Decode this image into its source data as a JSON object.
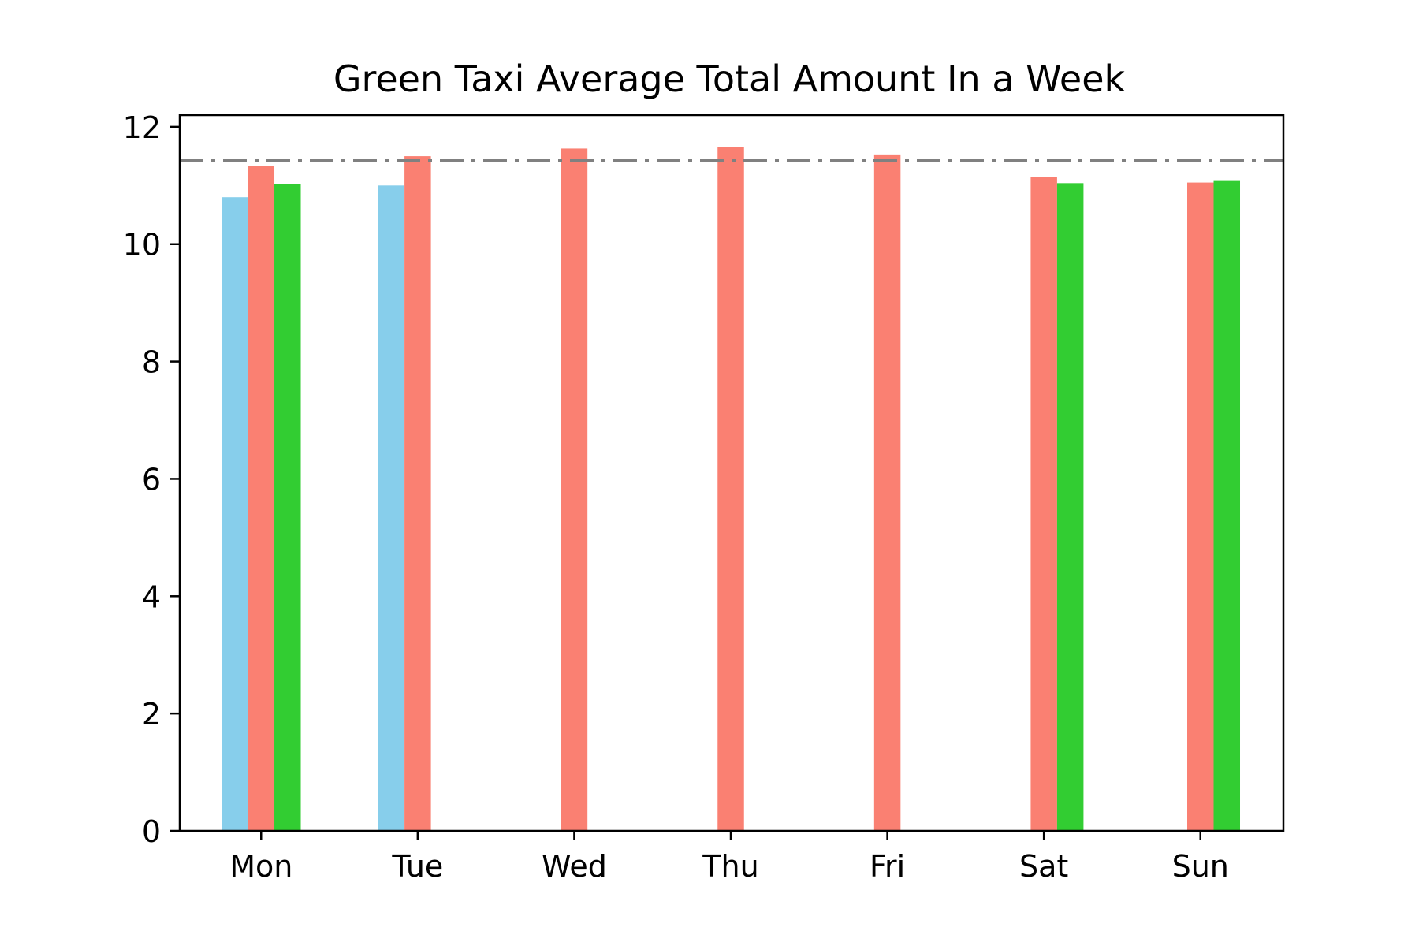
{
  "chart_data": {
    "type": "bar",
    "title": "Green Taxi Average Total Amount In a Week",
    "xlabel": "",
    "ylabel": "",
    "categories": [
      "Mon",
      "Tue",
      "Wed",
      "Thu",
      "Fri",
      "Sat",
      "Sun"
    ],
    "ylim": [
      0,
      12.2
    ],
    "yticks": [
      "0",
      "2",
      "4",
      "6",
      "8",
      "10",
      "12"
    ],
    "grid": false,
    "legend": "none",
    "series": [
      {
        "color": "#87CEEB",
        "values": [
          10.8,
          11.0,
          null,
          null,
          null,
          null,
          null
        ]
      },
      {
        "color": "#FA8072",
        "values": [
          11.33,
          11.5,
          11.63,
          11.65,
          11.53,
          11.15,
          11.05
        ]
      },
      {
        "color": "#32CD32",
        "values": [
          11.02,
          null,
          null,
          null,
          null,
          11.04,
          11.09
        ]
      }
    ],
    "reference_line": {
      "value": 11.42,
      "color": "#808080",
      "style": "dash-dot"
    }
  }
}
